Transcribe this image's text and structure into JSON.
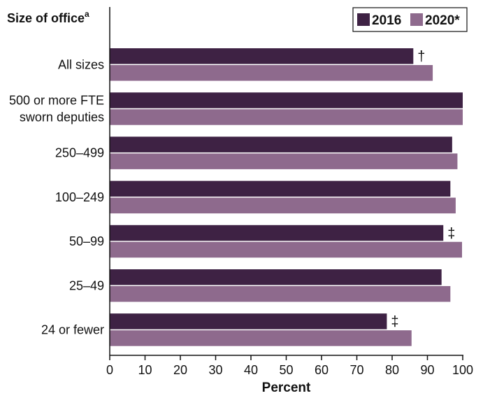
{
  "chart_data": {
    "type": "bar",
    "orientation": "horizontal",
    "y_header": "Size of office",
    "y_header_sup": "a",
    "xlabel": "Percent",
    "xlim": [
      0,
      100
    ],
    "xticks": [
      0,
      10,
      20,
      30,
      40,
      50,
      60,
      70,
      80,
      90,
      100
    ],
    "grid": false,
    "legend_position": "top-right",
    "categories": [
      [
        "All sizes"
      ],
      [
        "500 or more FTE",
        "sworn deputies"
      ],
      [
        "250–499"
      ],
      [
        "100–249"
      ],
      [
        "50–99"
      ],
      [
        "25–49"
      ],
      [
        "24 or fewer"
      ]
    ],
    "series": [
      {
        "name": "2016",
        "color": "#3e2244",
        "values": [
          86,
          100,
          97,
          96.5,
          94.5,
          94,
          78.5
        ]
      },
      {
        "name": "2020*",
        "color": "#8e6a8d",
        "values": [
          91.5,
          100,
          98.5,
          98,
          99.8,
          96.5,
          85.5
        ]
      }
    ],
    "annotations": [
      "†",
      "",
      "",
      "",
      "‡",
      "",
      "‡"
    ]
  }
}
